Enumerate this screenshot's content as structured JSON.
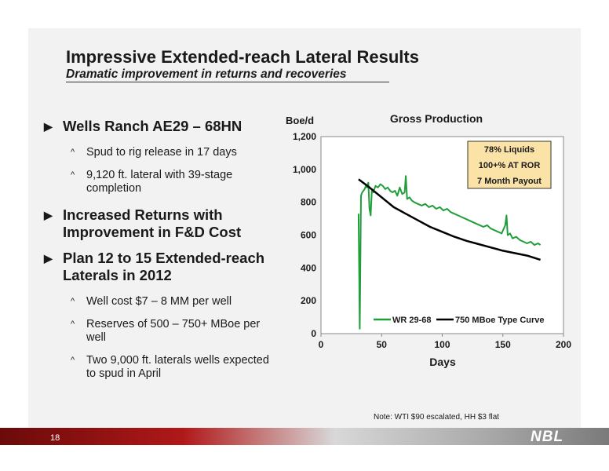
{
  "slide": {
    "title": "Impressive Extended-reach Lateral Results",
    "subtitle": "Dramatic improvement in returns and recoveries",
    "page_number": "18",
    "logo": "NBL",
    "note": "Note: WTI $90 escalated, HH $3 flat"
  },
  "bullets": [
    {
      "text": "Wells Ranch AE29 – 68HN",
      "subs": [
        "Spud to rig release in 17 days",
        "9,120 ft. lateral with 39-stage completion"
      ]
    },
    {
      "text": "Increased Returns with Improvement in F&D Cost",
      "subs": []
    },
    {
      "text": "Plan 12 to 15 Extended-reach Laterals in 2012",
      "subs": [
        "Well cost $7 – 8 MM per well",
        "Reserves of 500 – 750+ MBoe per well",
        "Two 9,000 ft. laterals wells expected to spud in April"
      ]
    }
  ],
  "chart_data": {
    "type": "line",
    "title": "Gross Production",
    "ylabel": "Boe/d",
    "xlabel": "Days",
    "xlim": [
      0,
      200
    ],
    "ylim": [
      0,
      1200
    ],
    "xticks": [
      "0",
      "50",
      "100",
      "150",
      "200"
    ],
    "yticks": [
      "0",
      "200",
      "400",
      "600",
      "800",
      "1,000",
      "1,200"
    ],
    "annotation": [
      "78% Liquids",
      "100+% AT ROR",
      "7 Month Payout"
    ],
    "legend_position": "bottom",
    "series": [
      {
        "name": "WR 29-68",
        "color": "#1f9e3a",
        "x": [
          31,
          32,
          33,
          34,
          35,
          36,
          37,
          38,
          39,
          40,
          41,
          42,
          43,
          45,
          47,
          49,
          51,
          53,
          55,
          57,
          59,
          61,
          63,
          65,
          67,
          69,
          70,
          71,
          73,
          75,
          77,
          80,
          83,
          86,
          89,
          92,
          95,
          98,
          101,
          104,
          107,
          110,
          113,
          116,
          119,
          122,
          125,
          128,
          131,
          134,
          137,
          140,
          143,
          146,
          149,
          152,
          153,
          154,
          156,
          158,
          161,
          164,
          167,
          170,
          173,
          176,
          179,
          181
        ],
        "y": [
          730,
          30,
          840,
          860,
          870,
          880,
          900,
          890,
          920,
          760,
          720,
          880,
          860,
          900,
          890,
          910,
          900,
          880,
          890,
          870,
          860,
          870,
          840,
          890,
          850,
          860,
          960,
          820,
          830,
          810,
          800,
          790,
          780,
          790,
          770,
          780,
          760,
          770,
          750,
          760,
          740,
          730,
          720,
          710,
          700,
          690,
          680,
          670,
          660,
          650,
          660,
          640,
          630,
          620,
          610,
          660,
          720,
          600,
          610,
          580,
          590,
          570,
          560,
          550,
          560,
          540,
          550,
          540
        ]
      },
      {
        "name": "750 MBoe Type Curve",
        "color": "#000000",
        "x": [
          31,
          40,
          50,
          60,
          70,
          80,
          90,
          100,
          110,
          120,
          130,
          140,
          150,
          160,
          170,
          181
        ],
        "y": [
          940,
          890,
          830,
          770,
          730,
          690,
          650,
          620,
          590,
          565,
          545,
          525,
          505,
          490,
          475,
          450
        ]
      }
    ]
  }
}
